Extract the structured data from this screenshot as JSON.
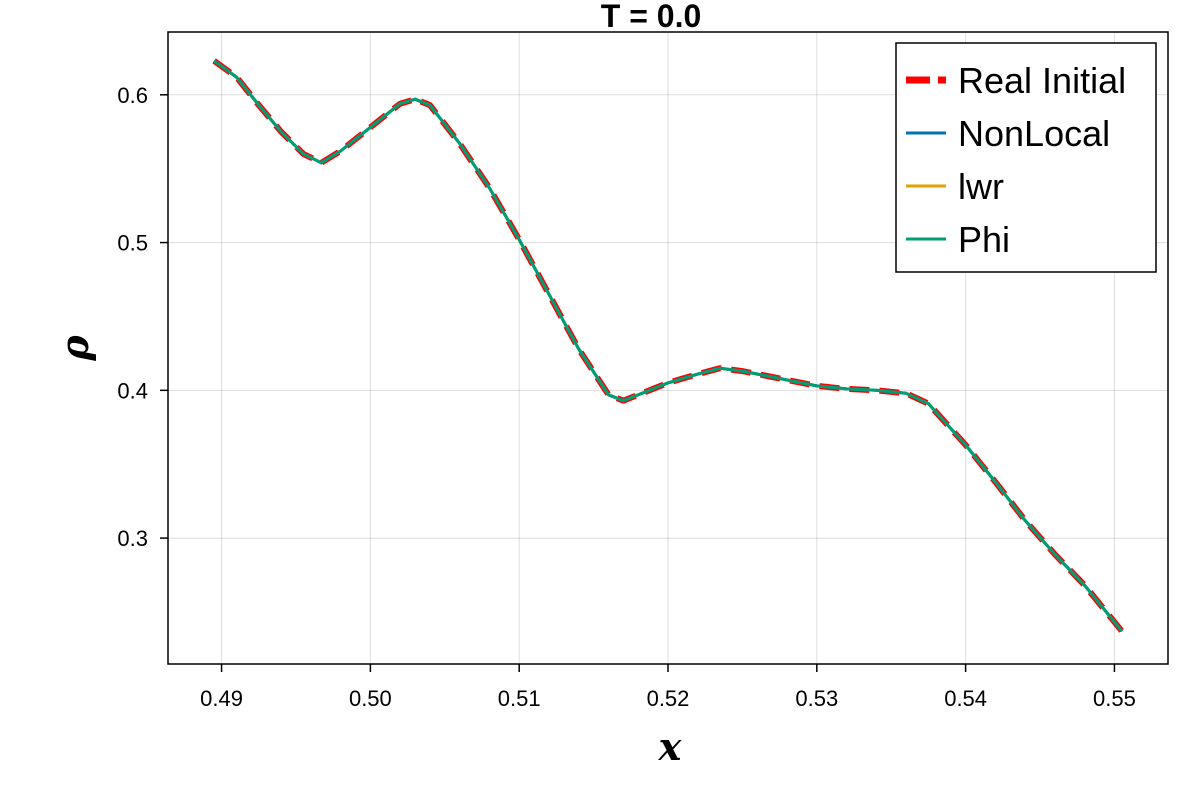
{
  "chart_data": {
    "type": "line",
    "title": "T = 0.0",
    "xlabel": "x",
    "ylabel": "ρ",
    "xlim": [
      0.4864,
      0.5536
    ],
    "ylim": [
      0.2148,
      0.6425
    ],
    "x_ticks": [
      0.49,
      0.5,
      0.51,
      0.52,
      0.53,
      0.54,
      0.55
    ],
    "x_tick_labels": [
      "0.49",
      "0.50",
      "0.51",
      "0.52",
      "0.53",
      "0.54",
      "0.55"
    ],
    "y_ticks": [
      0.3,
      0.4,
      0.5,
      0.6
    ],
    "y_tick_labels": [
      "0.3",
      "0.4",
      "0.5",
      "0.6"
    ],
    "grid": true,
    "legend_position": "top-right",
    "x": [
      0.4895,
      0.491,
      0.4925,
      0.494,
      0.4955,
      0.4967,
      0.498,
      0.5,
      0.502,
      0.503,
      0.504,
      0.506,
      0.508,
      0.51,
      0.512,
      0.514,
      0.516,
      0.517,
      0.5185,
      0.52,
      0.522,
      0.5235,
      0.525,
      0.527,
      0.53,
      0.532,
      0.534,
      0.536,
      0.5375,
      0.54,
      0.542,
      0.544,
      0.546,
      0.548,
      0.5505
    ],
    "series": [
      {
        "name": "Real Initial",
        "color": "#ff0000",
        "style": "dashed",
        "y": [
          0.623,
          0.612,
          0.593,
          0.575,
          0.56,
          0.554,
          0.562,
          0.578,
          0.594,
          0.597,
          0.593,
          0.567,
          0.537,
          0.502,
          0.465,
          0.428,
          0.397,
          0.393,
          0.399,
          0.405,
          0.411,
          0.415,
          0.413,
          0.409,
          0.403,
          0.401,
          0.4,
          0.398,
          0.391,
          0.363,
          0.338,
          0.312,
          0.289,
          0.268,
          0.237
        ]
      },
      {
        "name": "NonLocal",
        "color": "#0072b2",
        "style": "solid",
        "y": [
          0.623,
          0.612,
          0.593,
          0.575,
          0.56,
          0.554,
          0.562,
          0.578,
          0.594,
          0.597,
          0.593,
          0.567,
          0.537,
          0.502,
          0.465,
          0.428,
          0.397,
          0.393,
          0.399,
          0.405,
          0.411,
          0.415,
          0.413,
          0.409,
          0.403,
          0.401,
          0.4,
          0.398,
          0.391,
          0.363,
          0.338,
          0.312,
          0.289,
          0.268,
          0.237
        ]
      },
      {
        "name": "lwr",
        "color": "#e69f00",
        "style": "solid",
        "y": [
          0.623,
          0.612,
          0.593,
          0.575,
          0.56,
          0.554,
          0.562,
          0.578,
          0.594,
          0.597,
          0.593,
          0.567,
          0.537,
          0.502,
          0.465,
          0.428,
          0.397,
          0.393,
          0.399,
          0.405,
          0.411,
          0.415,
          0.413,
          0.409,
          0.403,
          0.401,
          0.4,
          0.398,
          0.391,
          0.363,
          0.338,
          0.312,
          0.289,
          0.268,
          0.237
        ]
      },
      {
        "name": "Phi",
        "color": "#009e73",
        "style": "solid",
        "y": [
          0.623,
          0.612,
          0.593,
          0.575,
          0.56,
          0.554,
          0.562,
          0.578,
          0.594,
          0.597,
          0.593,
          0.567,
          0.537,
          0.502,
          0.465,
          0.428,
          0.397,
          0.393,
          0.399,
          0.405,
          0.411,
          0.415,
          0.413,
          0.409,
          0.403,
          0.401,
          0.4,
          0.398,
          0.391,
          0.363,
          0.338,
          0.312,
          0.289,
          0.268,
          0.237
        ]
      }
    ]
  }
}
